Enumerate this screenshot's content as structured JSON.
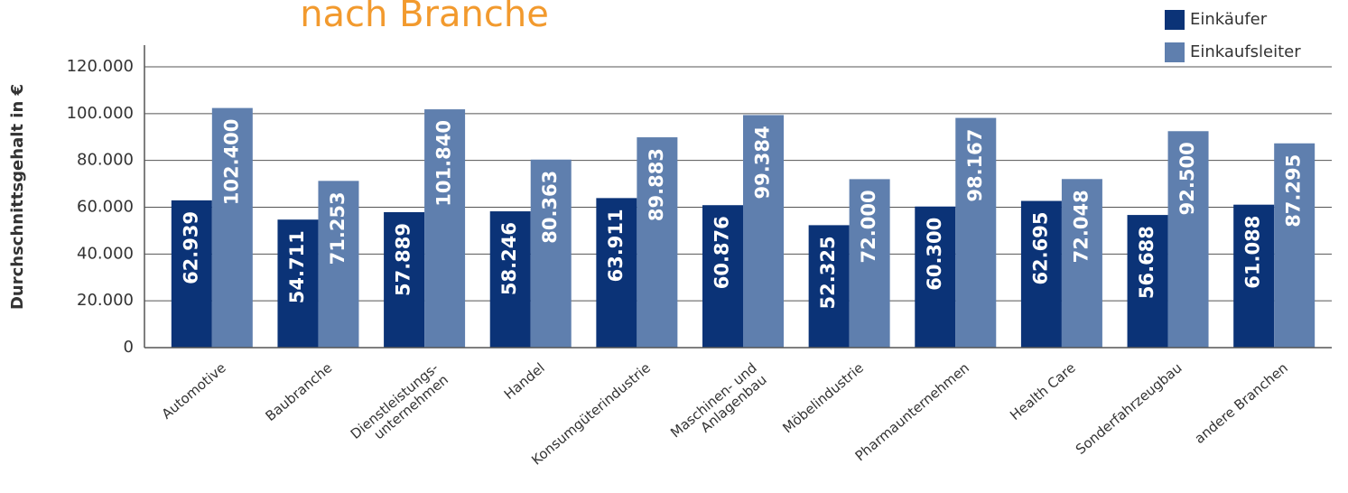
{
  "chart_data": {
    "type": "bar",
    "title": "nach Branche",
    "y_label": "Durchschnittsgehalt  in €",
    "categories": [
      "Automotive",
      "Baubranche",
      "Dienstleistungs-\nunternehmen",
      "Handel",
      "Konsumgüterindustrie",
      "Maschinen- und\nAnlagenbau",
      "Möbelindustrie",
      "Pharmaunternehmen",
      "Health Care",
      "Sonderfahrzeugbau",
      "andere Branchen"
    ],
    "series": [
      {
        "name": "Einkäufer",
        "color": "#0b3377",
        "values": [
          62939,
          54711,
          57889,
          58246,
          63911,
          60876,
          52325,
          60300,
          62695,
          56688,
          61088
        ],
        "value_labels": [
          "62.939",
          "54.711",
          "57.889",
          "58.246",
          "63.911",
          "60.876",
          "52.325",
          "60.300",
          "62.695",
          "56.688",
          "61.088"
        ]
      },
      {
        "name": "Einkaufsleiter",
        "color": "#5f7fae",
        "values": [
          102400,
          71253,
          101840,
          80363,
          89883,
          99384,
          72000,
          98167,
          72048,
          92500,
          87295
        ],
        "value_labels": [
          "102.400",
          "71.253",
          "101.840",
          "80.363",
          "89.883",
          "99.384",
          "72.000",
          "98.167",
          "72.048",
          "92.500",
          "87.295"
        ]
      }
    ],
    "ylim": [
      0,
      120000
    ],
    "yticks": [
      0,
      {
        "value": 20000,
        "label": "20.000"
      },
      {
        "value": 40000,
        "label": "40.000"
      },
      {
        "value": 60000,
        "label": "60.000"
      },
      {
        "value": 80000,
        "label": "80.000"
      },
      {
        "value": 100000,
        "label": "100.000"
      },
      {
        "value": 120000,
        "label": "120.000"
      }
    ],
    "grid": true
  }
}
